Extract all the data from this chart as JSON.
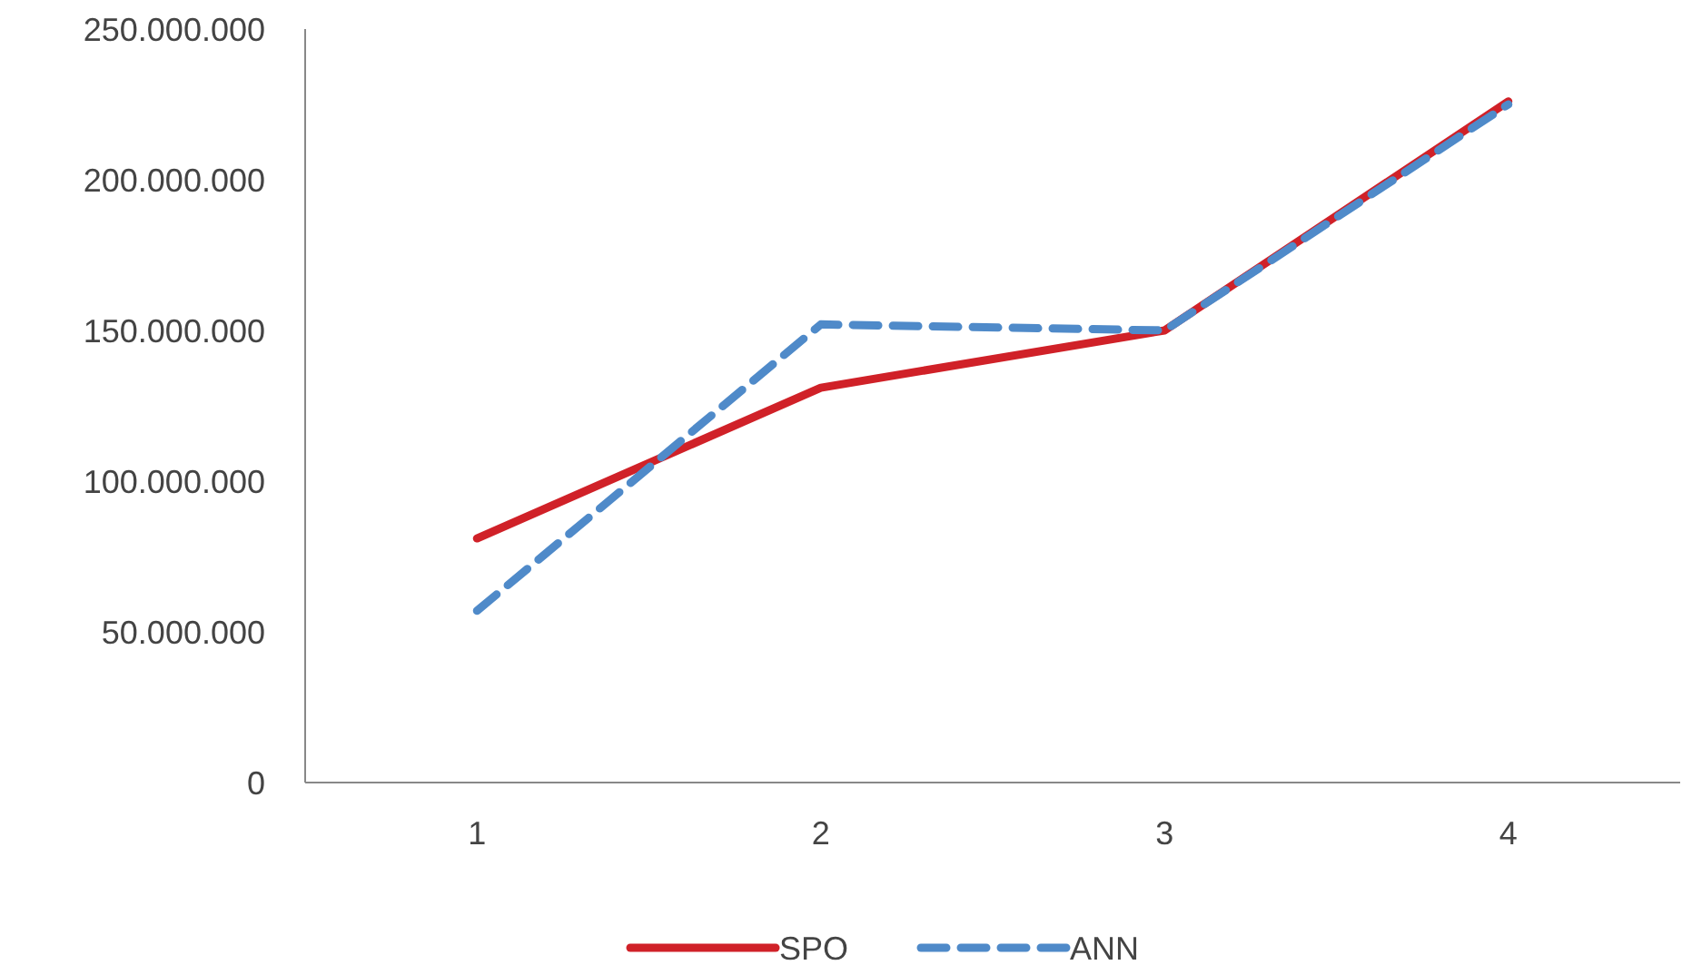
{
  "chart_data": {
    "type": "line",
    "categories": [
      "1",
      "2",
      "3",
      "4"
    ],
    "series": [
      {
        "name": "SPO",
        "color": "#d02128",
        "line_style": "solid",
        "values": [
          81000000,
          131000000,
          150000000,
          226000000
        ]
      },
      {
        "name": "ANN",
        "color": "#4f8ac9",
        "line_style": "dashed",
        "values": [
          57000000,
          152000000,
          150000000,
          225000000
        ]
      }
    ],
    "ylim": [
      0,
      250000000
    ],
    "yticks": [
      0,
      {
        "value": 50000000,
        "label": "50.000.000"
      },
      {
        "value": 100000000,
        "label": "100.000.000"
      },
      {
        "value": 150000000,
        "label": "150.000.000"
      },
      {
        "value": 200000000,
        "label": "200.000.000"
      },
      {
        "value": 250000000,
        "label": "250.000.000"
      }
    ],
    "grid": false,
    "legend": "bottom",
    "marker": "none"
  }
}
